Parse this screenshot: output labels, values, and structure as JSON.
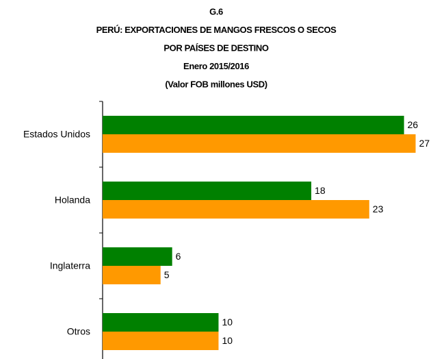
{
  "chart_data": {
    "type": "hbar",
    "title": [
      "G.6",
      "PERÚ: EXPORTACIONES DE MANGOS FRESCOS O SECOS",
      "POR PAÍSES DE DESTINO",
      "Enero 2015/2016",
      "(Valor FOB millones USD)"
    ],
    "categories": [
      "Estados Unidos",
      "Holanda",
      "Inglaterra",
      "Otros"
    ],
    "series": [
      {
        "color": "#008000",
        "values": [
          26,
          18,
          6,
          10
        ]
      },
      {
        "color": "#ff9900",
        "values": [
          27,
          23,
          5,
          10
        ]
      }
    ],
    "xlim": [
      0,
      28.5
    ]
  }
}
